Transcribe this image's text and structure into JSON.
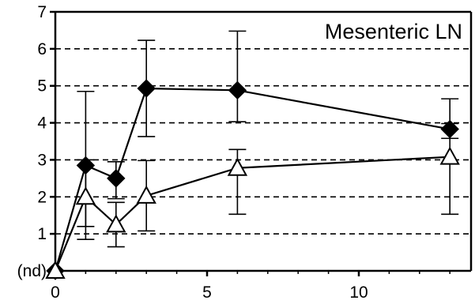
{
  "chart_data": {
    "type": "line",
    "title": "Mesenteric LN",
    "xlabel": "",
    "ylabel": "",
    "xlim": [
      0,
      14
    ],
    "ylim": [
      0,
      7
    ],
    "x_ticks": [
      0,
      5,
      10
    ],
    "y_ticks": [
      {
        "value": 0,
        "label": "(nd)"
      },
      {
        "value": 1,
        "label": "1"
      },
      {
        "value": 2,
        "label": "2"
      },
      {
        "value": 3,
        "label": "3"
      },
      {
        "value": 4,
        "label": "4"
      },
      {
        "value": 5,
        "label": "5"
      },
      {
        "value": 6,
        "label": "6"
      },
      {
        "value": 7,
        "label": "7"
      }
    ],
    "grid": "horizontal-dashed",
    "series": [
      {
        "marker": "filled-diamond",
        "color": "#000000",
        "x": [
          0,
          1,
          2,
          3,
          6,
          13
        ],
        "y": [
          0,
          2.85,
          2.5,
          4.93,
          4.88,
          3.83
        ],
        "err_low": [
          0,
          1.65,
          0.55,
          1.3,
          0.85,
          0.25
        ],
        "err_high": [
          0,
          2.0,
          0.45,
          1.3,
          1.6,
          0.82
        ]
      },
      {
        "marker": "open-triangle",
        "color": "#000000",
        "x": [
          0,
          1,
          2,
          3,
          6,
          13
        ],
        "y": [
          0,
          2.0,
          1.25,
          2.03,
          2.78,
          3.08
        ],
        "err_low": [
          0,
          1.15,
          0.6,
          0.95,
          1.25,
          1.55
        ],
        "err_high": [
          0,
          1.0,
          0.6,
          0.95,
          0.5,
          0.9
        ]
      }
    ]
  }
}
